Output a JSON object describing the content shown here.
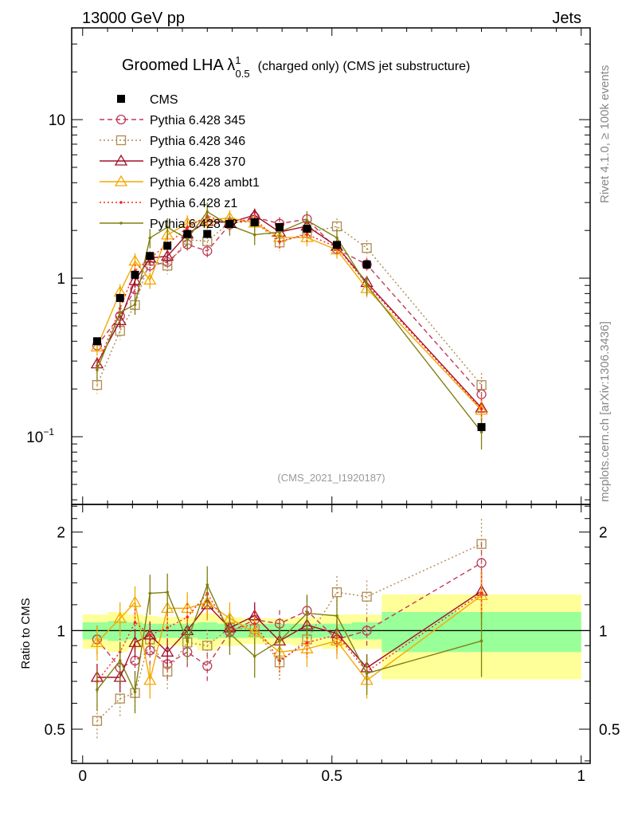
{
  "header": {
    "left": "13000 GeV pp",
    "right": "Jets"
  },
  "side_labels": {
    "rivet": "Rivet 4.1.0, ≥ 100k events",
    "mcplots": "mcplots.cern.ch [arXiv:1306.3436]"
  },
  "chart_data": {
    "type": "line",
    "title": {
      "main": "Groomed LHA λ",
      "sup": "1",
      "sub": "0.5",
      "rest": "(charged only) (CMS jet substructure)"
    },
    "analysis_label": "(CMS_2021_I1920187)",
    "xlabel": "",
    "ylabel_ratio": "Ratio to CMS",
    "xlim": [
      -0.022,
      1.018
    ],
    "ylim_main": [
      0.0374,
      37.9
    ],
    "ylim_ratio": [
      0.393,
      2.43
    ],
    "yscale": "log",
    "grid": false,
    "legend_position": "top-left",
    "x_ticks": [
      {
        "v": 0,
        "label": "0"
      },
      {
        "v": 0.5,
        "label": "0.5"
      },
      {
        "v": 1,
        "label": "1"
      }
    ],
    "y_ticks_main": [
      {
        "v": 10,
        "label": "10"
      },
      {
        "v": 1,
        "label": "1"
      },
      {
        "v": 0.1,
        "label": "10",
        "exp": "−1"
      }
    ],
    "y_ticks_ratio": [
      {
        "v": 2,
        "label": "2"
      },
      {
        "v": 1,
        "label": "1"
      },
      {
        "v": 0.5,
        "label": "0.5"
      }
    ],
    "x": [
      0.029,
      0.075,
      0.105,
      0.135,
      0.17,
      0.21,
      0.25,
      0.295,
      0.345,
      0.395,
      0.45,
      0.51,
      0.57,
      0.8
    ],
    "bin_edges": [
      0,
      0.05,
      0.09,
      0.12,
      0.15,
      0.19,
      0.23,
      0.27,
      0.32,
      0.37,
      0.42,
      0.48,
      0.54,
      0.6,
      1.0
    ],
    "data": {
      "name": "CMS",
      "values": [
        0.4,
        0.75,
        1.05,
        1.38,
        1.6,
        1.9,
        1.9,
        2.2,
        2.25,
        2.1,
        2.05,
        1.62,
        1.22,
        0.115
      ],
      "band_stat": [
        0.06,
        0.07,
        0.06,
        0.05,
        0.05,
        0.05,
        0.06,
        0.05,
        0.05,
        0.05,
        0.05,
        0.05,
        0.06,
        0.14
      ],
      "band_total": [
        0.12,
        0.14,
        0.12,
        0.11,
        0.1,
        0.1,
        0.13,
        0.1,
        0.09,
        0.09,
        0.1,
        0.12,
        0.12,
        0.29
      ]
    },
    "series": [
      {
        "name": "Pythia 6.428 345",
        "color": "#c03a5a",
        "marker": "circle",
        "dash": "6,4",
        "ratio": [
          0.94,
          0.77,
          0.81,
          0.87,
          0.79,
          0.86,
          0.78,
          0.99,
          1.08,
          1.05,
          1.15,
          0.94,
          1.0,
          1.61
        ],
        "rel_err": 0.1
      },
      {
        "name": "Pythia 6.428 346",
        "color": "#b08a50",
        "marker": "square",
        "dash": "2,3",
        "ratio": [
          0.53,
          0.62,
          0.645,
          0.94,
          0.75,
          0.92,
          0.9,
          1.02,
          1.01,
          0.8,
          0.94,
          1.31,
          1.27,
          1.84
        ],
        "rel_err": 0.12
      },
      {
        "name": "Pythia 6.428 370",
        "color": "#a01028",
        "marker": "triangle",
        "dash": "",
        "ratio": [
          0.72,
          0.72,
          0.92,
          0.97,
          0.86,
          1.0,
          1.2,
          1.02,
          1.11,
          0.93,
          1.04,
          0.98,
          0.77,
          1.32
        ],
        "rel_err": 0.1
      },
      {
        "name": "Pythia 6.428 ambt1",
        "color": "#f5a800",
        "marker": "triangle",
        "dash": "",
        "ratio": [
          0.92,
          1.09,
          1.22,
          0.705,
          1.17,
          1.17,
          1.22,
          1.09,
          0.99,
          0.86,
          0.88,
          0.93,
          0.705,
          1.28
        ],
        "rel_err": 0.12
      },
      {
        "name": "Pythia 6.428 z1",
        "color": "#ff2020",
        "marker": "dot",
        "dash": "2,3",
        "ratio": [
          0.7,
          0.86,
          1.06,
          0.97,
          1.02,
          1.1,
          1.3,
          1.0,
          1.05,
          0.81,
          0.92,
          0.97,
          0.75,
          1.3
        ],
        "rel_err": 0.1
      },
      {
        "name": "Pythia 6.428 z2",
        "color": "#808010",
        "marker": "dot",
        "dash": "",
        "ratio": [
          0.66,
          0.81,
          0.65,
          1.3,
          1.31,
          0.93,
          1.38,
          0.98,
          0.835,
          0.93,
          1.13,
          1.11,
          0.74,
          0.93
        ],
        "rel_err": 0.14
      }
    ]
  }
}
